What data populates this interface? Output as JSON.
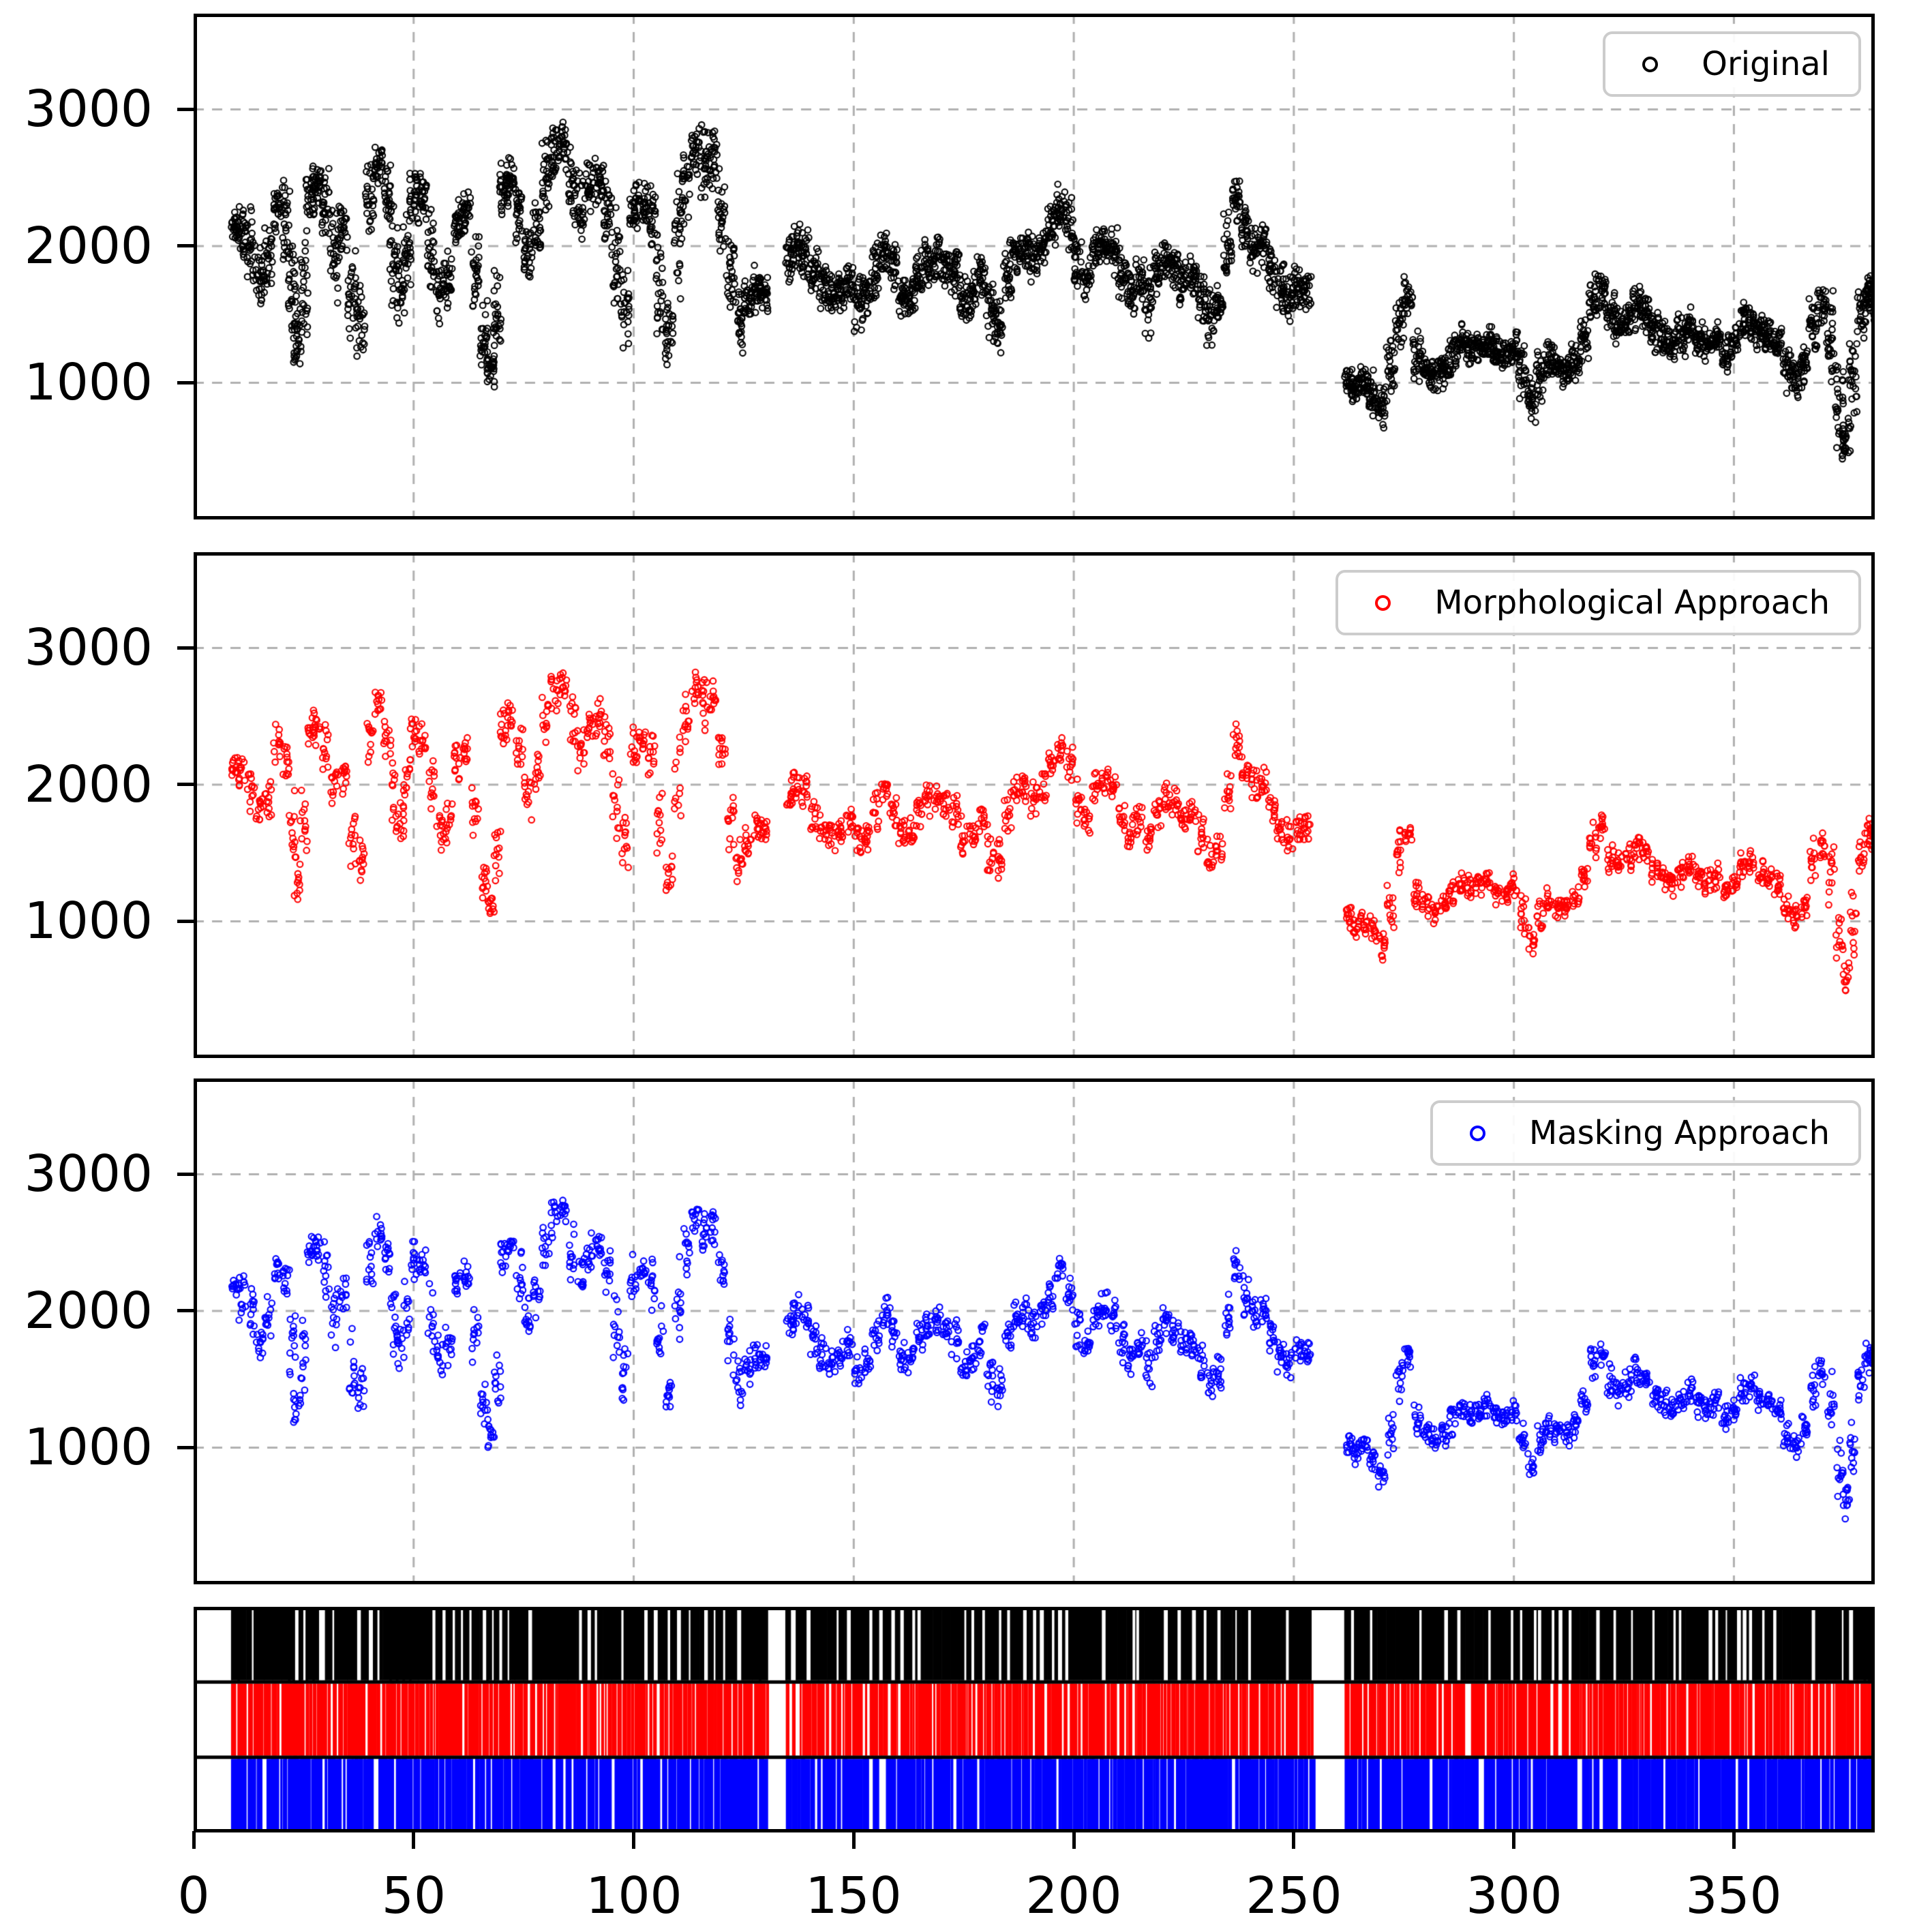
{
  "figure": {
    "background": "#ffffff"
  },
  "style": {
    "grid_color": "#b0b0b0",
    "spine_color": "#000000",
    "legend_border_color": "#cccccc",
    "tick_label_color": "#000000"
  },
  "axes": {
    "x": {
      "lim": [
        0,
        382
      ],
      "ticks": [
        0,
        50,
        100,
        150,
        200,
        250,
        300,
        350
      ],
      "tick_labels": [
        "0",
        "50",
        "100",
        "150",
        "200",
        "250",
        "300",
        "350"
      ]
    },
    "y": {
      "lim": [
        0,
        3700
      ],
      "ticks": [
        3000,
        2000,
        1000
      ],
      "tick_labels": [
        "3000",
        "2000",
        "1000"
      ]
    }
  },
  "chart_data": {
    "type": "scatter",
    "title": "",
    "xlabel": "",
    "ylabel": "",
    "grid": "dashed",
    "legend_position": "upper right",
    "series": [
      {
        "name": "Original",
        "color": "#000000",
        "marker": "open-circle"
      },
      {
        "name": "Morphological Approach",
        "color": "#ff0000",
        "marker": "open-circle"
      },
      {
        "name": "Masking Approach",
        "color": "#0000ff",
        "marker": "open-circle"
      }
    ],
    "x_range": [
      9,
      382
    ],
    "x_gaps": [
      [
        130,
        134.5
      ],
      [
        253.5,
        261
      ]
    ],
    "trend_note": "shared trend of all three panels: [x, center value, half-spread of daily cluster]",
    "trend": [
      [
        9.5,
        2150,
        120
      ],
      [
        11,
        2100,
        200
      ],
      [
        13,
        2000,
        250
      ],
      [
        15,
        1800,
        200
      ],
      [
        17,
        1950,
        250
      ],
      [
        19,
        2300,
        180
      ],
      [
        21,
        2200,
        250
      ],
      [
        22.5,
        1700,
        400
      ],
      [
        23.5,
        1300,
        220
      ],
      [
        25,
        1700,
        350
      ],
      [
        26.5,
        2400,
        180
      ],
      [
        28,
        2420,
        160
      ],
      [
        30,
        2300,
        250
      ],
      [
        32,
        1950,
        300
      ],
      [
        34,
        2100,
        200
      ],
      [
        36,
        1600,
        330
      ],
      [
        38,
        1450,
        250
      ],
      [
        40,
        2350,
        250
      ],
      [
        42,
        2580,
        140
      ],
      [
        44,
        2400,
        250
      ],
      [
        45.5,
        1900,
        350
      ],
      [
        47,
        1700,
        250
      ],
      [
        48.5,
        2000,
        280
      ],
      [
        50,
        2380,
        170
      ],
      [
        52,
        2350,
        180
      ],
      [
        54,
        1950,
        280
      ],
      [
        56,
        1650,
        250
      ],
      [
        58,
        1750,
        200
      ],
      [
        60,
        2180,
        160
      ],
      [
        62,
        2250,
        140
      ],
      [
        64,
        1800,
        300
      ],
      [
        66,
        1300,
        280
      ],
      [
        67.5,
        1100,
        130
      ],
      [
        69,
        1500,
        300
      ],
      [
        70.5,
        2400,
        180
      ],
      [
        72,
        2500,
        130
      ],
      [
        74,
        2250,
        230
      ],
      [
        76,
        1950,
        250
      ],
      [
        78,
        2100,
        200
      ],
      [
        80,
        2500,
        250
      ],
      [
        82,
        2680,
        180
      ],
      [
        84,
        2740,
        160
      ],
      [
        86,
        2450,
        280
      ],
      [
        88,
        2250,
        250
      ],
      [
        90,
        2430,
        170
      ],
      [
        92,
        2480,
        170
      ],
      [
        94,
        2300,
        250
      ],
      [
        96,
        1850,
        350
      ],
      [
        98,
        1550,
        250
      ],
      [
        100,
        2250,
        200
      ],
      [
        102,
        2300,
        160
      ],
      [
        104,
        2200,
        250
      ],
      [
        106,
        1750,
        400
      ],
      [
        108,
        1350,
        220
      ],
      [
        110,
        2050,
        400
      ],
      [
        112,
        2450,
        250
      ],
      [
        114,
        2720,
        170
      ],
      [
        116,
        2600,
        250
      ],
      [
        118,
        2620,
        200
      ],
      [
        120,
        2250,
        300
      ],
      [
        122,
        1750,
        300
      ],
      [
        124,
        1450,
        220
      ],
      [
        126,
        1600,
        160
      ],
      [
        128,
        1680,
        150
      ],
      [
        129.5,
        1650,
        130
      ],
      [
        135.5,
        1900,
        160
      ],
      [
        137,
        2000,
        160
      ],
      [
        139,
        1950,
        180
      ],
      [
        141,
        1800,
        180
      ],
      [
        143,
        1700,
        160
      ],
      [
        145,
        1620,
        150
      ],
      [
        147,
        1680,
        150
      ],
      [
        149,
        1750,
        150
      ],
      [
        151,
        1600,
        200
      ],
      [
        153,
        1620,
        160
      ],
      [
        155,
        1800,
        200
      ],
      [
        157,
        1980,
        160
      ],
      [
        159,
        1850,
        200
      ],
      [
        161,
        1650,
        180
      ],
      [
        163,
        1650,
        150
      ],
      [
        165,
        1800,
        160
      ],
      [
        167,
        1880,
        150
      ],
      [
        169,
        1900,
        150
      ],
      [
        171,
        1870,
        150
      ],
      [
        173,
        1800,
        180
      ],
      [
        175,
        1600,
        220
      ],
      [
        177,
        1650,
        160
      ],
      [
        179,
        1780,
        180
      ],
      [
        181,
        1550,
        250
      ],
      [
        183,
        1450,
        200
      ],
      [
        185,
        1800,
        200
      ],
      [
        187,
        1950,
        150
      ],
      [
        189,
        1980,
        150
      ],
      [
        191,
        1900,
        160
      ],
      [
        193,
        2000,
        160
      ],
      [
        195,
        2150,
        160
      ],
      [
        197,
        2280,
        150
      ],
      [
        199,
        2150,
        200
      ],
      [
        201,
        1850,
        220
      ],
      [
        203,
        1750,
        160
      ],
      [
        205,
        1950,
        160
      ],
      [
        207,
        2020,
        150
      ],
      [
        209,
        1980,
        160
      ],
      [
        211,
        1800,
        200
      ],
      [
        213,
        1650,
        160
      ],
      [
        215,
        1750,
        160
      ],
      [
        217,
        1580,
        250
      ],
      [
        219,
        1800,
        160
      ],
      [
        221,
        1900,
        150
      ],
      [
        223,
        1850,
        150
      ],
      [
        225,
        1750,
        160
      ],
      [
        227,
        1780,
        150
      ],
      [
        229,
        1620,
        180
      ],
      [
        231,
        1480,
        200
      ],
      [
        233,
        1550,
        160
      ],
      [
        235,
        1950,
        250
      ],
      [
        237,
        2330,
        180
      ],
      [
        239,
        2100,
        200
      ],
      [
        241,
        1980,
        160
      ],
      [
        243,
        2000,
        150
      ],
      [
        245,
        1820,
        160
      ],
      [
        247,
        1680,
        160
      ],
      [
        249,
        1620,
        150
      ],
      [
        251,
        1700,
        130
      ],
      [
        253,
        1680,
        130
      ],
      [
        262.5,
        1020,
        110
      ],
      [
        264,
        960,
        110
      ],
      [
        266,
        1000,
        120
      ],
      [
        268,
        920,
        150
      ],
      [
        270,
        820,
        150
      ],
      [
        272,
        1100,
        220
      ],
      [
        274,
        1500,
        220
      ],
      [
        276,
        1650,
        140
      ],
      [
        278,
        1200,
        180
      ],
      [
        280,
        1100,
        130
      ],
      [
        282,
        1060,
        120
      ],
      [
        284,
        1100,
        120
      ],
      [
        286,
        1200,
        150
      ],
      [
        288,
        1300,
        130
      ],
      [
        290,
        1260,
        120
      ],
      [
        292,
        1260,
        110
      ],
      [
        294,
        1300,
        120
      ],
      [
        296,
        1220,
        120
      ],
      [
        298,
        1200,
        110
      ],
      [
        300,
        1260,
        120
      ],
      [
        302,
        1050,
        200
      ],
      [
        304,
        850,
        160
      ],
      [
        306,
        1050,
        160
      ],
      [
        308,
        1150,
        130
      ],
      [
        310,
        1120,
        120
      ],
      [
        312,
        1100,
        110
      ],
      [
        314,
        1160,
        120
      ],
      [
        316,
        1320,
        160
      ],
      [
        318,
        1600,
        200
      ],
      [
        320,
        1700,
        130
      ],
      [
        322,
        1480,
        160
      ],
      [
        324,
        1420,
        130
      ],
      [
        326,
        1460,
        130
      ],
      [
        328,
        1560,
        150
      ],
      [
        330,
        1500,
        130
      ],
      [
        332,
        1380,
        130
      ],
      [
        334,
        1320,
        120
      ],
      [
        336,
        1280,
        120
      ],
      [
        338,
        1360,
        150
      ],
      [
        340,
        1420,
        130
      ],
      [
        342,
        1320,
        120
      ],
      [
        344,
        1280,
        120
      ],
      [
        346,
        1320,
        120
      ],
      [
        348,
        1220,
        120
      ],
      [
        350,
        1280,
        120
      ],
      [
        352,
        1420,
        150
      ],
      [
        354,
        1460,
        130
      ],
      [
        356,
        1380,
        130
      ],
      [
        358,
        1320,
        120
      ],
      [
        360,
        1280,
        120
      ],
      [
        362,
        1080,
        150
      ],
      [
        364,
        1020,
        120
      ],
      [
        366,
        1120,
        130
      ],
      [
        368,
        1450,
        220
      ],
      [
        370,
        1560,
        160
      ],
      [
        372,
        1350,
        300
      ],
      [
        374,
        850,
        300
      ],
      [
        375.5,
        600,
        180
      ],
      [
        377,
        1000,
        280
      ],
      [
        379,
        1500,
        170
      ],
      [
        380.5,
        1660,
        130
      ],
      [
        381.5,
        1620,
        150
      ]
    ],
    "render": [
      {
        "points_per_cluster": 26,
        "x_jitter": 0.95,
        "y_spread": 1.25,
        "seed": 11
      },
      {
        "points_per_cluster": 12,
        "x_jitter": 0.8,
        "y_spread": 0.9,
        "seed": 22
      },
      {
        "points_per_cluster": 12,
        "x_jitter": 0.8,
        "y_spread": 0.9,
        "seed": 33
      }
    ],
    "eventplot": {
      "description": "bottom raster panel: three strips of vertical event lines sharing the scatter x-axis and its gaps",
      "rows": [
        {
          "name": "Original",
          "color": "#000000",
          "style": "solid",
          "seed": 5,
          "gaps_per_cluster": 0.45,
          "gap_width": 4
        },
        {
          "name": "Morphological Approach",
          "color": "#ff0000",
          "style": "lines",
          "seed": 6,
          "lines_per_cluster": 6,
          "line_width": [
            2,
            5
          ],
          "solid_chance": 0.12
        },
        {
          "name": "Masking Approach",
          "color": "#0000ff",
          "style": "lines",
          "seed": 7,
          "lines_per_cluster": 5,
          "line_width": [
            3,
            7
          ],
          "solid_chance": 0.15
        }
      ]
    }
  }
}
